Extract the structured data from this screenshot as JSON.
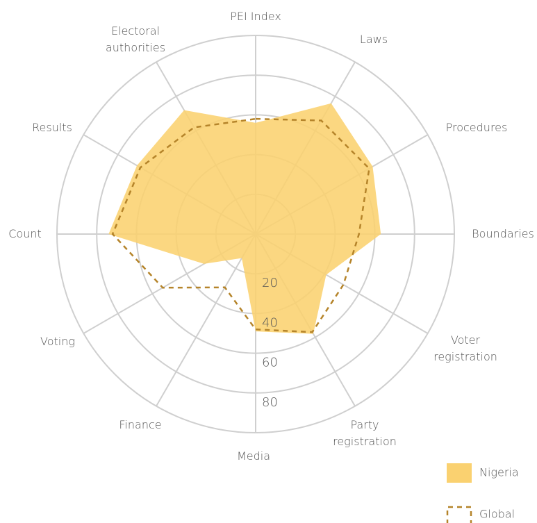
{
  "chart_data": {
    "type": "radar",
    "categories": [
      "PEI Index",
      "Laws",
      "Procedures",
      "Boundaries",
      "Voter\nregistration",
      "Party\nregistration",
      "Media",
      "Finance",
      "Voting",
      "Count",
      "Results",
      "Electoral\nauthorities"
    ],
    "series": [
      {
        "name": "Nigeria",
        "color": "#fad170",
        "style": "fill",
        "values": [
          56,
          76,
          68,
          63,
          41,
          58,
          49,
          14,
          30,
          74,
          69,
          72
        ]
      },
      {
        "name": "Global",
        "color": "#b5842a",
        "style": "dashed",
        "values": [
          58,
          66,
          66,
          52,
          51,
          57,
          48,
          31,
          54,
          72,
          67,
          62
        ]
      }
    ],
    "rlim": [
      0,
      100
    ],
    "rticks": [
      20,
      40,
      60,
      80
    ]
  }
}
